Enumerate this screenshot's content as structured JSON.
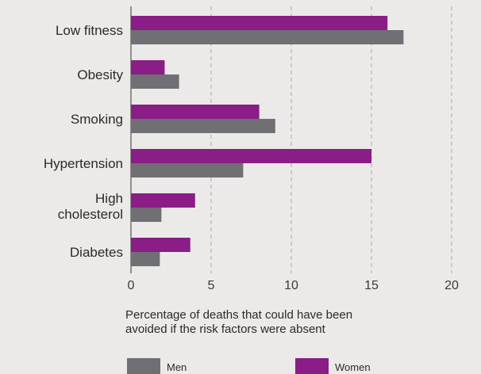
{
  "chart_data": {
    "type": "bar",
    "orientation": "horizontal",
    "categories": [
      "Low fitness",
      "Obesity",
      "Smoking",
      "Hypertension",
      "High cholesterol",
      "Diabetes"
    ],
    "category_lines": [
      [
        "Low fitness"
      ],
      [
        "Obesity"
      ],
      [
        "Smoking"
      ],
      [
        "Hypertension"
      ],
      [
        "High",
        "cholesterol"
      ],
      [
        "Diabetes"
      ]
    ],
    "series": [
      {
        "name": "Women",
        "color": "#8a1d86",
        "values": [
          16,
          2.1,
          8,
          15,
          4,
          3.7
        ]
      },
      {
        "name": "Men",
        "color": "#6f6f74",
        "values": [
          17,
          3,
          9,
          7,
          1.9,
          1.8
        ]
      }
    ],
    "xlabel_lines": [
      "Percentage of deaths that could have been",
      "avoided if the risk factors were absent"
    ],
    "xticks": [
      0,
      5,
      10,
      15,
      20
    ],
    "xlim": [
      0,
      21
    ],
    "grid": "vertical dashed",
    "legend": {
      "position": "bottom",
      "order": [
        "Men",
        "Women"
      ]
    }
  }
}
